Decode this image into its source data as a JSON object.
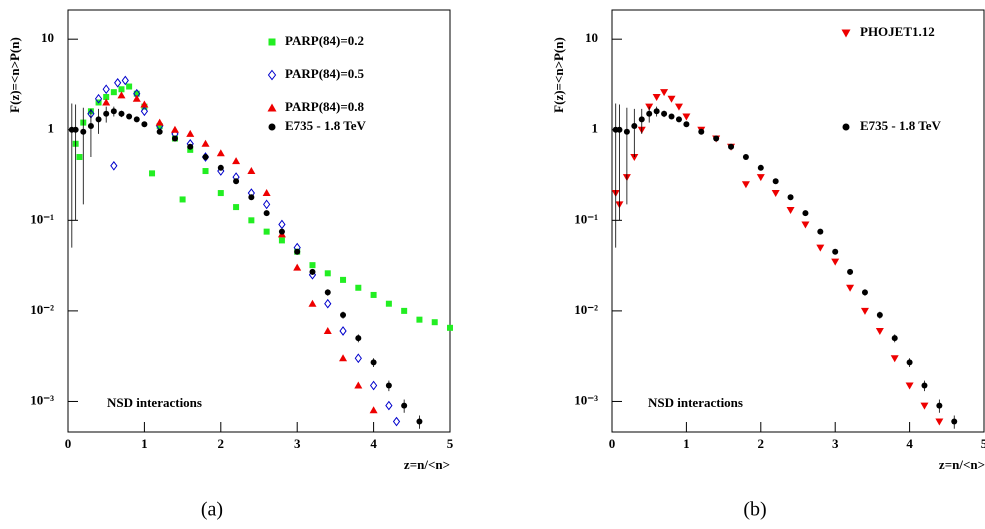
{
  "chart_data": [
    {
      "type": "scatter",
      "caption": "(a)",
      "ylabel": "F(z)=<n>P(n)",
      "xlabel": "z=n/<n>",
      "annotation": "NSD interactions",
      "log_y": true,
      "xlim": [
        0,
        5
      ],
      "ylim": [
        0.00046,
        21
      ],
      "xticks": [
        0,
        1,
        2,
        3,
        4,
        5
      ],
      "yticks": [
        10,
        1,
        {
          "value": 0.1,
          "label": "10⁻¹"
        },
        {
          "value": 0.01,
          "label": "10⁻²"
        },
        {
          "value": 0.001,
          "label": "10⁻³"
        }
      ],
      "series": [
        {
          "name": "PARP(84)=0.2",
          "color": "#22ee22",
          "marker": "square",
          "x": [
            0.1,
            0.15,
            0.2,
            0.3,
            0.4,
            0.5,
            0.6,
            0.7,
            0.8,
            0.9,
            1.0,
            1.1,
            1.2,
            1.4,
            1.5,
            1.6,
            1.8,
            2.0,
            2.2,
            2.4,
            2.6,
            2.8,
            3.0,
            3.2,
            3.4,
            3.6,
            3.8,
            4.0,
            4.2,
            4.4,
            4.6,
            4.8,
            5.0
          ],
          "values": [
            0.7,
            0.5,
            1.2,
            1.6,
            2.0,
            2.3,
            2.6,
            2.8,
            3.0,
            2.5,
            1.8,
            0.33,
            1.1,
            0.8,
            0.17,
            0.6,
            0.35,
            0.2,
            0.14,
            0.1,
            0.075,
            0.06,
            0.045,
            0.032,
            0.026,
            0.022,
            0.018,
            0.015,
            0.012,
            0.01,
            0.008,
            0.0075,
            0.0065
          ]
        },
        {
          "name": "PARP(84)=0.5",
          "color": "#0000cc",
          "marker": "diamond",
          "x": [
            0.3,
            0.4,
            0.5,
            0.6,
            0.65,
            0.75,
            0.9,
            1.0,
            1.2,
            1.4,
            1.6,
            1.8,
            2.0,
            2.2,
            2.4,
            2.6,
            2.8,
            3.0,
            3.2,
            3.4,
            3.6,
            3.8,
            4.0,
            4.2,
            4.3
          ],
          "values": [
            1.5,
            2.2,
            2.8,
            0.4,
            3.3,
            3.5,
            2.5,
            1.6,
            1.1,
            0.9,
            0.7,
            0.5,
            0.35,
            0.3,
            0.2,
            0.15,
            0.09,
            0.05,
            0.025,
            0.012,
            0.006,
            0.003,
            0.0015,
            0.0009,
            0.0006
          ]
        },
        {
          "name": "PARP(84)=0.8",
          "color": "#ee0000",
          "marker": "triangle-up",
          "x": [
            0.5,
            0.7,
            0.9,
            1.0,
            1.2,
            1.4,
            1.6,
            1.8,
            2.0,
            2.2,
            2.4,
            2.6,
            2.8,
            3.0,
            3.2,
            3.4,
            3.6,
            3.8,
            4.0
          ],
          "values": [
            2.0,
            2.4,
            2.2,
            1.9,
            1.2,
            1.0,
            0.9,
            0.7,
            0.55,
            0.45,
            0.35,
            0.2,
            0.07,
            0.03,
            0.012,
            0.006,
            0.003,
            0.0015,
            0.0008
          ]
        },
        {
          "name": "E735 - 1.8 TeV",
          "color": "#000000",
          "marker": "circle",
          "x": [
            0.05,
            0.1,
            0.2,
            0.3,
            0.4,
            0.5,
            0.6,
            0.7,
            0.8,
            0.9,
            1.0,
            1.2,
            1.4,
            1.6,
            1.8,
            2.0,
            2.2,
            2.4,
            2.6,
            2.8,
            3.0,
            3.2,
            3.4,
            3.6,
            3.8,
            4.0,
            4.2,
            4.4,
            4.6
          ],
          "values": [
            1.0,
            1.0,
            0.95,
            1.1,
            1.3,
            1.5,
            1.6,
            1.5,
            1.4,
            1.3,
            1.15,
            0.95,
            0.8,
            0.65,
            0.5,
            0.38,
            0.27,
            0.18,
            0.12,
            0.075,
            0.045,
            0.027,
            0.016,
            0.009,
            0.005,
            0.0027,
            0.0015,
            0.0009,
            0.0006
          ],
          "errors": [
            0.95,
            0.9,
            0.8,
            0.6,
            0.4,
            0.3,
            0.2,
            0.12,
            0.08,
            0.06,
            0.05,
            0.04,
            0.03,
            0.025,
            0.02,
            0.015,
            0.011,
            0.008,
            0.006,
            0.004,
            0.003,
            0.002,
            0.0013,
            0.0008,
            0.0005,
            0.0003,
            0.0002,
            0.00015,
            0.0001
          ]
        }
      ]
    },
    {
      "type": "scatter",
      "caption": "(b)",
      "ylabel": "F(z)=<n>P(n)",
      "xlabel": "z=n/<n>",
      "annotation": "NSD interactions",
      "log_y": true,
      "xlim": [
        0,
        5
      ],
      "ylim": [
        0.00046,
        21
      ],
      "xticks": [
        0,
        1,
        2,
        3,
        4,
        5
      ],
      "yticks": [
        10,
        1,
        {
          "value": 0.1,
          "label": "10⁻¹"
        },
        {
          "value": 0.01,
          "label": "10⁻²"
        },
        {
          "value": 0.001,
          "label": "10⁻³"
        }
      ],
      "series": [
        {
          "name": "PHOJET1.12",
          "color": "#ee0000",
          "marker": "triangle-down",
          "x": [
            0.05,
            0.1,
            0.2,
            0.3,
            0.4,
            0.5,
            0.6,
            0.7,
            0.8,
            0.9,
            1.0,
            1.2,
            1.4,
            1.6,
            1.8,
            2.0,
            2.2,
            2.4,
            2.6,
            2.8,
            3.0,
            3.2,
            3.4,
            3.6,
            3.8,
            4.0,
            4.2,
            4.4
          ],
          "values": [
            0.2,
            0.15,
            0.3,
            0.5,
            1.0,
            1.8,
            2.3,
            2.6,
            2.2,
            1.8,
            1.4,
            1.0,
            0.8,
            0.65,
            0.25,
            0.3,
            0.2,
            0.13,
            0.09,
            0.05,
            0.035,
            0.018,
            0.01,
            0.006,
            0.003,
            0.0015,
            0.0009,
            0.0006
          ]
        },
        {
          "name": "E735 - 1.8 TeV",
          "color": "#000000",
          "marker": "circle",
          "x": [
            0.05,
            0.1,
            0.2,
            0.3,
            0.4,
            0.5,
            0.6,
            0.7,
            0.8,
            0.9,
            1.0,
            1.2,
            1.4,
            1.6,
            1.8,
            2.0,
            2.2,
            2.4,
            2.6,
            2.8,
            3.0,
            3.2,
            3.4,
            3.6,
            3.8,
            4.0,
            4.2,
            4.4,
            4.6
          ],
          "values": [
            1.0,
            1.0,
            0.95,
            1.1,
            1.3,
            1.5,
            1.6,
            1.5,
            1.4,
            1.3,
            1.15,
            0.95,
            0.8,
            0.65,
            0.5,
            0.38,
            0.27,
            0.18,
            0.12,
            0.075,
            0.045,
            0.027,
            0.016,
            0.009,
            0.005,
            0.0027,
            0.0015,
            0.0009,
            0.0006
          ],
          "errors": [
            0.95,
            0.9,
            0.8,
            0.6,
            0.4,
            0.3,
            0.2,
            0.12,
            0.08,
            0.06,
            0.05,
            0.04,
            0.03,
            0.025,
            0.02,
            0.015,
            0.011,
            0.008,
            0.006,
            0.004,
            0.003,
            0.002,
            0.0013,
            0.0008,
            0.0005,
            0.0003,
            0.0002,
            0.00015,
            0.0001
          ]
        }
      ]
    }
  ]
}
